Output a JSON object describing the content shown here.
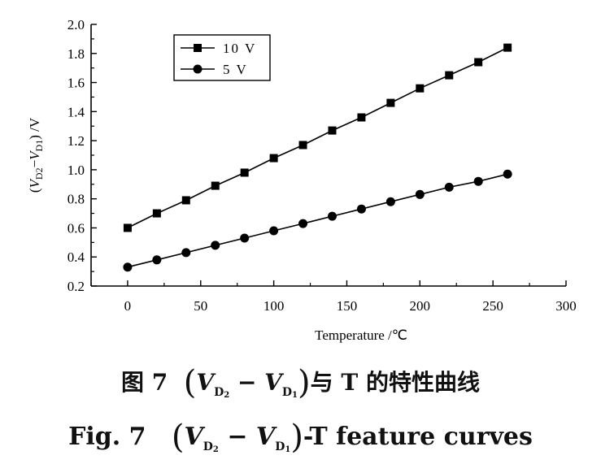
{
  "chart_data": {
    "type": "line",
    "x": [
      0,
      20,
      40,
      60,
      80,
      100,
      120,
      140,
      160,
      180,
      200,
      220,
      240,
      260
    ],
    "series": [
      {
        "name": "10 V",
        "marker": "square",
        "values": [
          0.6,
          0.7,
          0.79,
          0.89,
          0.98,
          1.08,
          1.17,
          1.27,
          1.36,
          1.46,
          1.56,
          1.65,
          1.74,
          1.84
        ]
      },
      {
        "name": "5 V",
        "marker": "circle",
        "values": [
          0.33,
          0.38,
          0.43,
          0.48,
          0.53,
          0.58,
          0.63,
          0.68,
          0.73,
          0.78,
          0.83,
          0.88,
          0.92,
          0.97
        ]
      }
    ],
    "xlabel": "Temperature /℃",
    "ylabel": "(V_D2−V_D1) /V",
    "xlim": [
      -25,
      300
    ],
    "ylim": [
      0.2,
      2.0
    ],
    "xticks": [
      0,
      50,
      100,
      150,
      200,
      250,
      300
    ],
    "yticks": [
      0.2,
      0.4,
      0.6,
      0.8,
      1.0,
      1.2,
      1.4,
      1.6,
      1.8,
      2.0
    ],
    "ytick_labels": [
      "0.2",
      "0.4",
      "0.6",
      "0.8",
      "1.0",
      "1.2",
      "1.4",
      "1.6",
      "1.8",
      "2.0"
    ],
    "legend": "top-left",
    "grid": false,
    "colors": {
      "line": "#000000"
    }
  },
  "caption": {
    "cn_fig": "图 7",
    "cn_text": "与 T 的特性曲线",
    "en_fig": "Fig. 7",
    "en_text": "-T feature curves",
    "v": "V",
    "d": "D",
    "d2": "2",
    "d1": "1",
    "minus": "−",
    "lparen": "(",
    "rparen": ")"
  }
}
